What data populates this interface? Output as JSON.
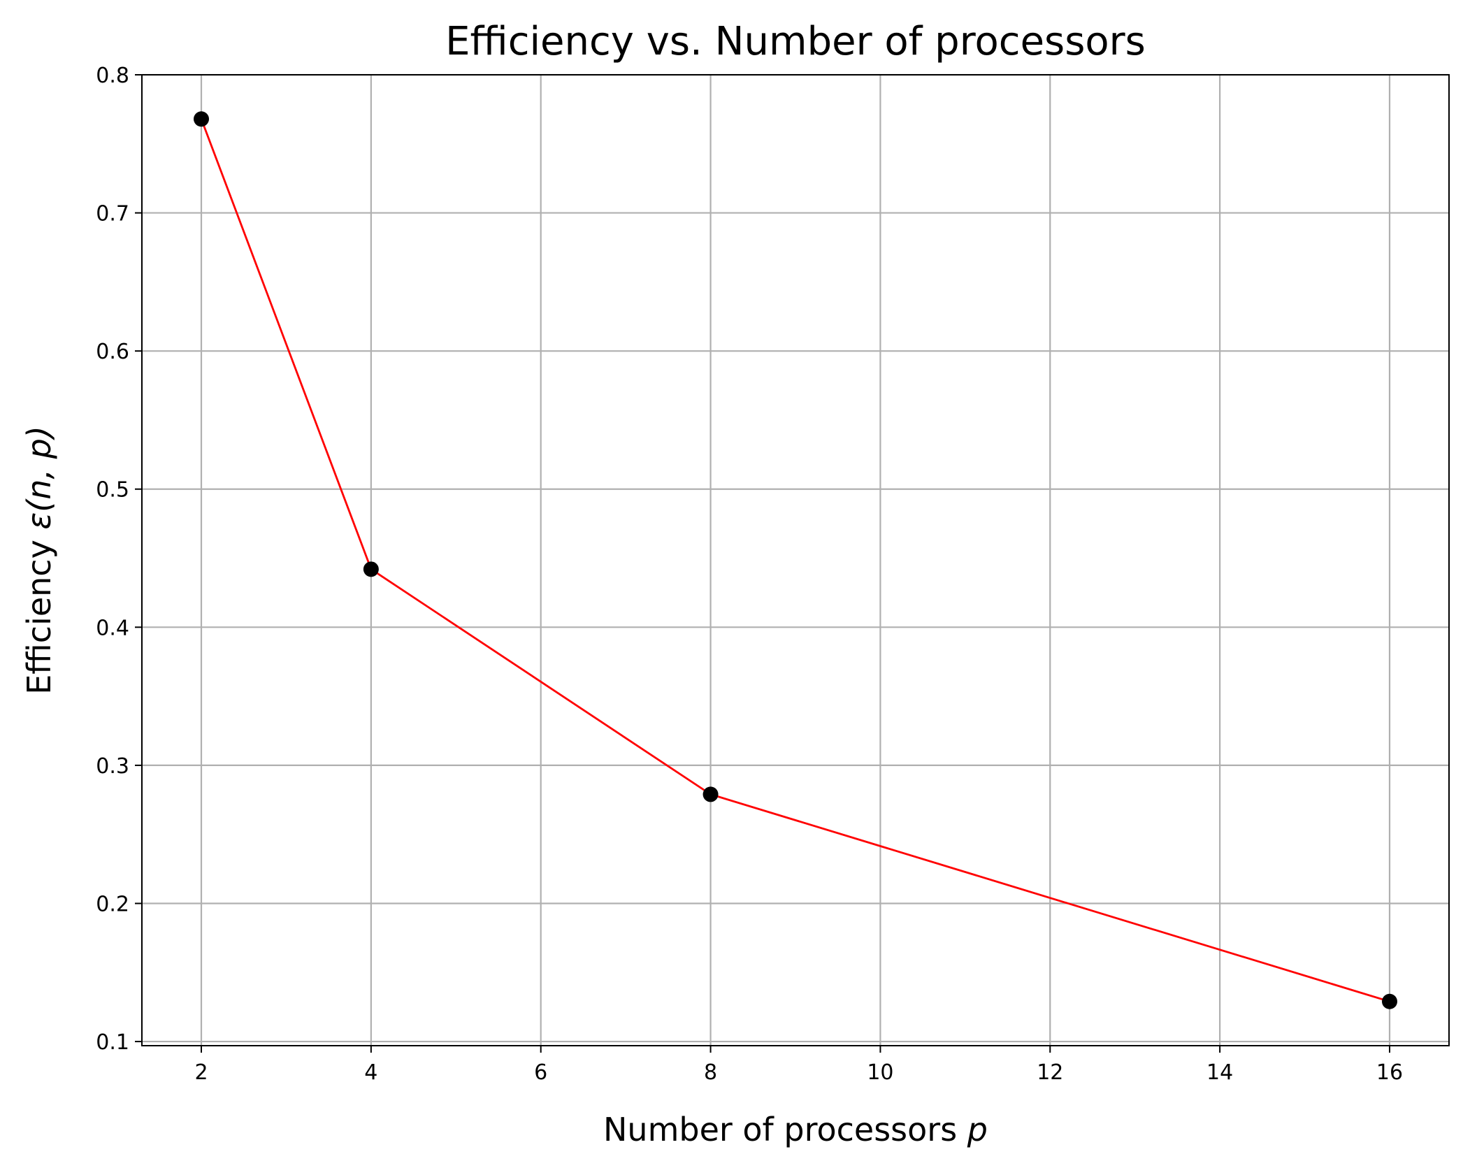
{
  "chart_data": {
    "type": "line",
    "title": "Efficiency vs. Number of processors",
    "xlabel": {
      "text": "Number of processors ",
      "math": "p"
    },
    "ylabel": {
      "text": "Efficiency ",
      "math": "ε(n, p)"
    },
    "xlim": [
      1.3,
      16.7
    ],
    "ylim": [
      0.097,
      0.8
    ],
    "xticks": [
      2,
      4,
      6,
      8,
      10,
      12,
      14,
      16
    ],
    "yticks": [
      0.1,
      0.2,
      0.3,
      0.4,
      0.5,
      0.6,
      0.7,
      0.8
    ],
    "grid": true,
    "series": [
      {
        "x": [
          2,
          4,
          8,
          16
        ],
        "y": [
          0.768,
          0.442,
          0.279,
          0.129
        ],
        "line_color": "#ff0000",
        "marker_color": "#000000",
        "marker": "circle"
      }
    ]
  }
}
